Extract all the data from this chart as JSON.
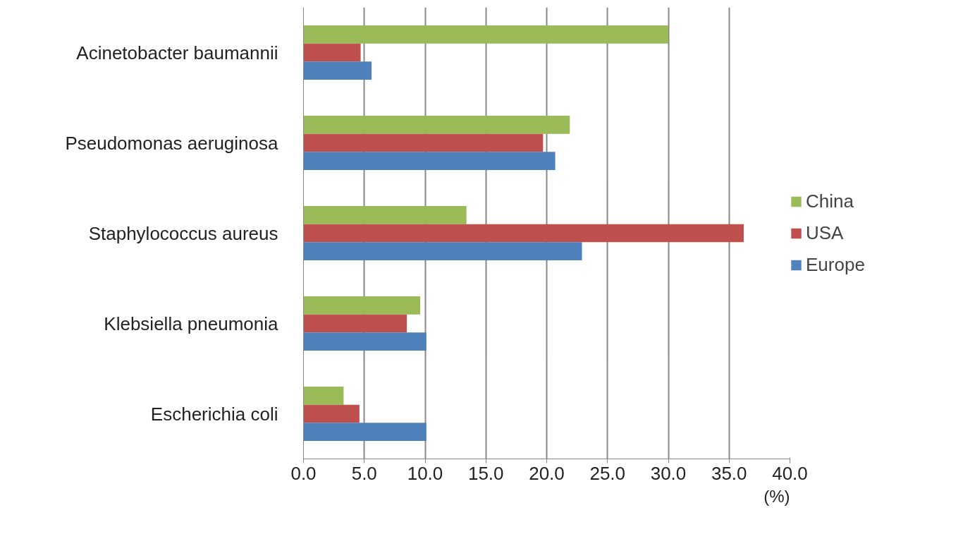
{
  "chart_data": {
    "type": "bar",
    "orientation": "horizontal",
    "xlabel": "(%)",
    "categories": [
      "Acinetobacter baumannii",
      "Pseudomonas aeruginosa",
      "Staphylococcus aureus",
      "Klebsiella pneumonia",
      "Escherichia coli"
    ],
    "series": [
      {
        "name": "China",
        "color": "#9bbb59",
        "values": [
          30.0,
          21.9,
          13.4,
          9.6,
          3.3
        ]
      },
      {
        "name": "USA",
        "color": "#c0504d",
        "values": [
          4.7,
          19.7,
          36.2,
          8.5,
          4.6
        ]
      },
      {
        "name": "Europe",
        "color": "#4f81bd",
        "values": [
          5.6,
          20.7,
          22.9,
          10.1,
          10.1
        ]
      }
    ],
    "xlim": [
      0,
      40
    ],
    "xticks": [
      {
        "value": 0,
        "label": "0.0"
      },
      {
        "value": 5,
        "label": "5.0"
      },
      {
        "value": 10,
        "label": "10.0"
      },
      {
        "value": 15,
        "label": "15.0"
      },
      {
        "value": 20,
        "label": "20.0"
      },
      {
        "value": 25,
        "label": "25.0"
      },
      {
        "value": 30,
        "label": "30.0"
      },
      {
        "value": 35,
        "label": "35.0"
      },
      {
        "value": 40,
        "label": "40.0"
      }
    ],
    "grid": "x",
    "legend": "right"
  }
}
